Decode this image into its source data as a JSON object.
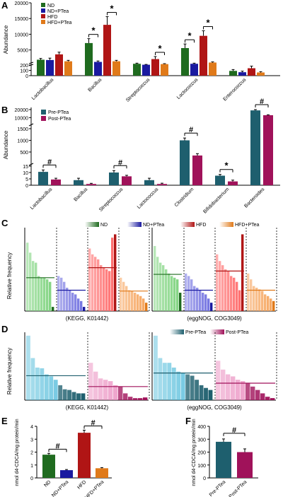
{
  "colors": {
    "nd": "#1f6b1f",
    "nd_ptea": "#1a1aa0",
    "hfd": "#b01515",
    "hfd_ptea": "#e07a1a",
    "pre": "#1e5f6e",
    "post": "#a0125a",
    "kegg_nd": "#7ed37e",
    "kegg_ndp": "#7070e0",
    "kegg_hfd": "#ff6a6a",
    "kegg_hfdp": "#f6a45c",
    "d_pre": "#48b8d8",
    "d_post": "#e880b8"
  },
  "chart_data": [
    {
      "panel": "A",
      "type": "bar",
      "ylabel": "Abundance",
      "y_ticks": [
        "0",
        "100",
        "200",
        "5000",
        "10000",
        "15000",
        "20000"
      ],
      "y_segments": [
        [
          0,
          200
        ],
        [
          200,
          20000
        ]
      ],
      "legend": [
        "ND",
        "ND+PTea",
        "HFD",
        "HFD+PTea"
      ],
      "categories": [
        "Lactobacillus",
        "Bacillus",
        "Streptococcus",
        "Lactococcus",
        "Enterococcus"
      ],
      "series": [
        {
          "name": "ND",
          "values": [
            1900,
            7200,
            600,
            5600,
            90
          ]
        },
        {
          "name": "ND+PTea",
          "values": [
            1800,
            1200,
            300,
            600,
            65
          ]
        },
        {
          "name": "HFD",
          "values": [
            3600,
            13000,
            2100,
            9500,
            140
          ]
        },
        {
          "name": "HFD+PTea",
          "values": [
            1400,
            1400,
            500,
            1000,
            60
          ]
        }
      ],
      "errors": [
        [
          400,
          1400,
          200,
          1300,
          25
        ],
        [
          600,
          300,
          100,
          200,
          20
        ],
        [
          700,
          2600,
          800,
          1600,
          40
        ],
        [
          300,
          300,
          150,
          200,
          15
        ]
      ],
      "annotations": [
        {
          "cat": 1,
          "from": 0,
          "to": 1,
          "label": "*"
        },
        {
          "cat": 1,
          "from": 2,
          "to": 3,
          "label": "*"
        },
        {
          "cat": 2,
          "from": 2,
          "to": 3,
          "label": "*"
        },
        {
          "cat": 3,
          "from": 0,
          "to": 1,
          "label": "*"
        },
        {
          "cat": 3,
          "from": 2,
          "to": 3,
          "label": "*"
        }
      ]
    },
    {
      "panel": "B",
      "type": "bar",
      "ylabel": "Abundance",
      "y_ticks": [
        "0",
        "5",
        "10",
        "15",
        "500",
        "1000",
        "1500",
        "10000",
        "20000"
      ],
      "legend": [
        "Pre-PTea",
        "Post-PTea"
      ],
      "categories": [
        "Lactobacillus",
        "Bacillus",
        "Streptococcus",
        "Lactococcus",
        "Clostridium",
        "Bifidobacterium",
        "Bacteroides"
      ],
      "series": [
        {
          "name": "Pre-PTea",
          "values": [
            10.5,
            4,
            10,
            4,
            1000,
            7.5,
            19000
          ]
        },
        {
          "name": "Post-PTea",
          "values": [
            4.5,
            1,
            7,
            1,
            350,
            3,
            13000
          ]
        }
      ],
      "errors": [
        [
          1.5,
          1.5,
          1.5,
          1.5,
          100,
          1,
          1200
        ],
        [
          1,
          0.5,
          0.8,
          0.6,
          80,
          1,
          500
        ]
      ],
      "annotations": [
        {
          "cat": 0,
          "label": "#"
        },
        {
          "cat": 2,
          "label": "#"
        },
        {
          "cat": 4,
          "label": "#"
        },
        {
          "cat": 5,
          "label": "*"
        },
        {
          "cat": 6,
          "label": "#"
        }
      ]
    },
    {
      "panel": "C",
      "type": "bar",
      "ylabel": "Relative frequency",
      "legend": [
        "ND",
        "ND+PTea",
        "HFD",
        "HFD+PTea"
      ],
      "subplots": [
        {
          "label": "(KEGG, K01442)",
          "groups": [
            {
              "name": "ND",
              "values": [
                82,
                70,
                60,
                58,
                42,
                40,
                40,
                38,
                35,
                5
              ],
              "mean": 40
            },
            {
              "name": "ND+PTea",
              "values": [
                42,
                40,
                35,
                28,
                25,
                22,
                20,
                15,
                12,
                5
              ],
              "mean": 25
            },
            {
              "name": "HFD",
              "values": [
                75,
                68,
                65,
                62,
                55,
                52,
                50,
                48,
                88,
                92
              ],
              "mean": 52
            },
            {
              "name": "HFD+PTea",
              "values": [
                40,
                35,
                30,
                25,
                24,
                22,
                20,
                18,
                15,
                10
              ],
              "mean": 24
            }
          ]
        },
        {
          "label": "(eggNOG, COG3049)",
          "groups": [
            {
              "name": "ND",
              "values": [
                78,
                65,
                58,
                55,
                50,
                45,
                42,
                40,
                38,
                22
              ],
              "mean": 44
            },
            {
              "name": "ND+PTea",
              "values": [
                45,
                42,
                38,
                30,
                28,
                25,
                22,
                20,
                15,
                10
              ],
              "mean": 25
            },
            {
              "name": "HFD",
              "values": [
                68,
                60,
                55,
                50,
                48,
                42,
                40,
                35,
                25,
                92
              ],
              "mean": 48
            },
            {
              "name": "HFD+PTea",
              "values": [
                45,
                38,
                30,
                28,
                26,
                24,
                20,
                18,
                15,
                12
              ],
              "mean": 25
            }
          ]
        }
      ]
    },
    {
      "panel": "D",
      "type": "bar",
      "ylabel": "Relative frequency",
      "legend": [
        "Pre-PTea",
        "Post-PTea"
      ],
      "subplots": [
        {
          "label": "(KEGG, K01442)",
          "groups": [
            {
              "name": "Pre-PTea",
              "values": [
                95,
                62,
                48,
                47,
                38,
                35,
                30,
                22,
                16,
                15,
                12,
                10,
                10
              ],
              "mean": 36
            },
            {
              "name": "Post-PTea",
              "values": [
                55,
                42,
                32,
                30,
                28,
                22,
                20,
                10,
                5,
                3,
                3,
                4
              ],
              "mean": 20
            }
          ]
        },
        {
          "label": "(eggNOG, COG3049)",
          "groups": [
            {
              "name": "Pre-PTea",
              "values": [
                95,
                62,
                55,
                55,
                48,
                42,
                40,
                38,
                36,
                30,
                22,
                18,
                15
              ],
              "mean": 40
            },
            {
              "name": "Post-PTea",
              "values": [
                58,
                45,
                38,
                35,
                30,
                28,
                25,
                20,
                15,
                10,
                5,
                3
              ],
              "mean": 25
            }
          ]
        }
      ]
    },
    {
      "panel": "E",
      "type": "bar",
      "ylabel": "nmol d4-CDCA/mg protein/min",
      "y_ticks": [
        "0",
        "1",
        "2",
        "3",
        "4"
      ],
      "ylim": [
        0,
        4
      ],
      "categories": [
        "ND",
        "ND+PTea",
        "HFD",
        "HFD+PTea"
      ],
      "values": [
        1.8,
        0.6,
        3.5,
        0.75
      ],
      "errors": [
        0.1,
        0.05,
        0.2,
        0.05
      ],
      "annotations": [
        {
          "from": 0,
          "to": 1,
          "label": "#"
        },
        {
          "from": 2,
          "to": 3,
          "label": "#"
        }
      ]
    },
    {
      "panel": "F",
      "type": "bar",
      "ylabel": "nmol d4-CDCA/mg protein/min",
      "y_ticks": [
        "0",
        "100",
        "200",
        "300",
        "400"
      ],
      "ylim": [
        0,
        400
      ],
      "categories": [
        "Pre-PTea",
        "Post-PTea"
      ],
      "values": [
        280,
        200
      ],
      "errors": [
        22,
        25
      ],
      "annotations": [
        {
          "from": 0,
          "to": 1,
          "label": "#"
        }
      ]
    }
  ]
}
